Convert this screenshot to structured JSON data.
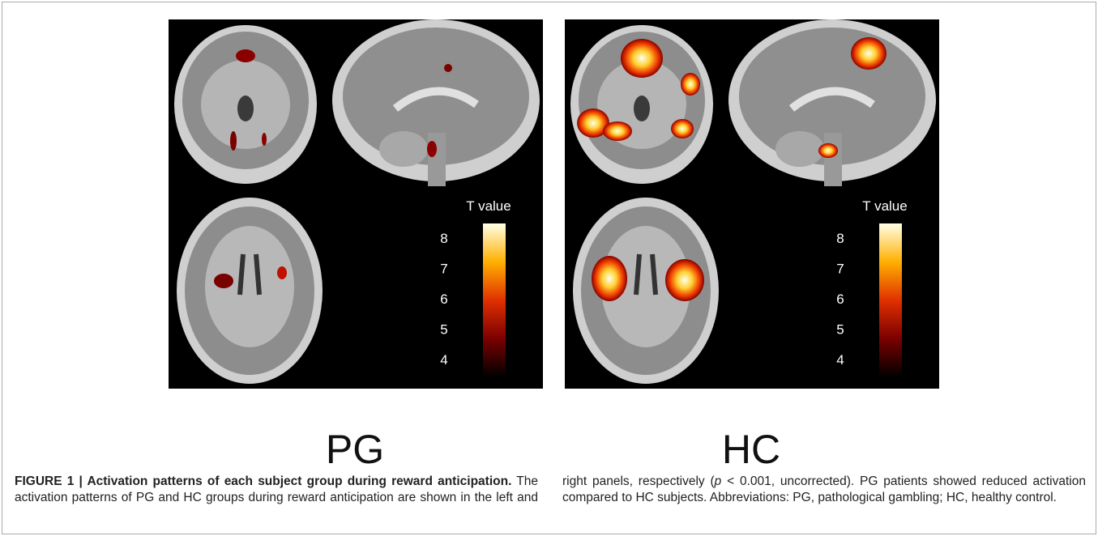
{
  "panels": [
    {
      "label": "PG",
      "colorbar": {
        "title": "T value",
        "ticks": [
          "8",
          "7",
          "6",
          "5",
          "4"
        ]
      }
    },
    {
      "label": "HC",
      "colorbar": {
        "title": "T value",
        "ticks": [
          "8",
          "7",
          "6",
          "5",
          "4"
        ]
      }
    }
  ],
  "caption": {
    "title": "FIGURE 1 | Activation patterns of each subject group during reward anticipation.",
    "body_before": " The activation patterns of PG and HC groups during reward anticipation are shown in the left and right panels, respectively (",
    "italic": "p",
    "body_after": " < 0.001, uncorrected). PG patients showed reduced activation compared to HC subjects. Abbreviations: PG, pathological gambling; HC, healthy control."
  }
}
